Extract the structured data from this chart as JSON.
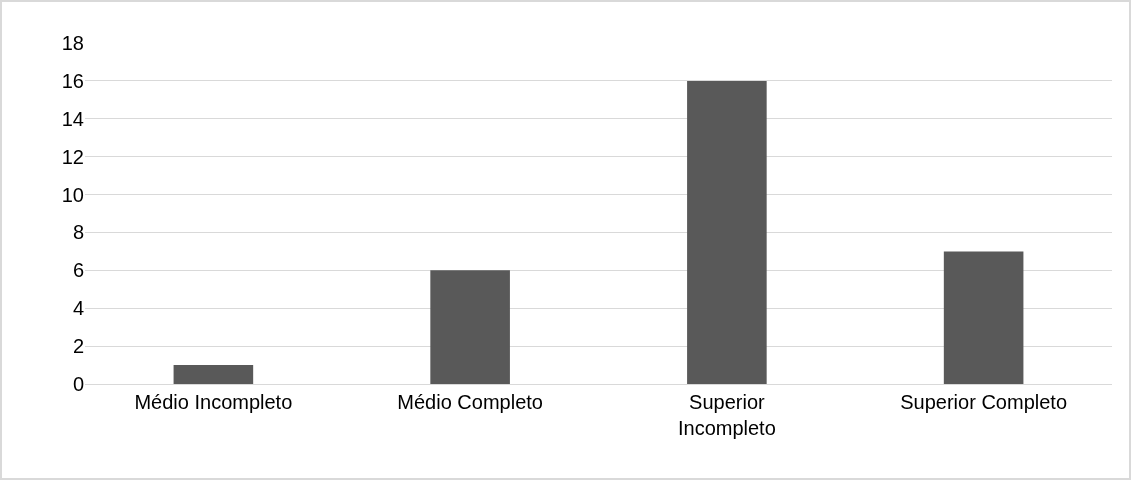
{
  "chart_data": {
    "type": "bar",
    "categories": [
      "Médio Incompleto",
      "Médio Completo",
      "Superior Incompleto",
      "Superior Completo"
    ],
    "values": [
      1,
      6,
      16,
      7
    ],
    "color": "#595959",
    "ylim": [
      0,
      18
    ],
    "yticks": [
      0,
      2,
      4,
      6,
      8,
      10,
      12,
      14,
      16,
      18
    ],
    "grid": "y"
  }
}
